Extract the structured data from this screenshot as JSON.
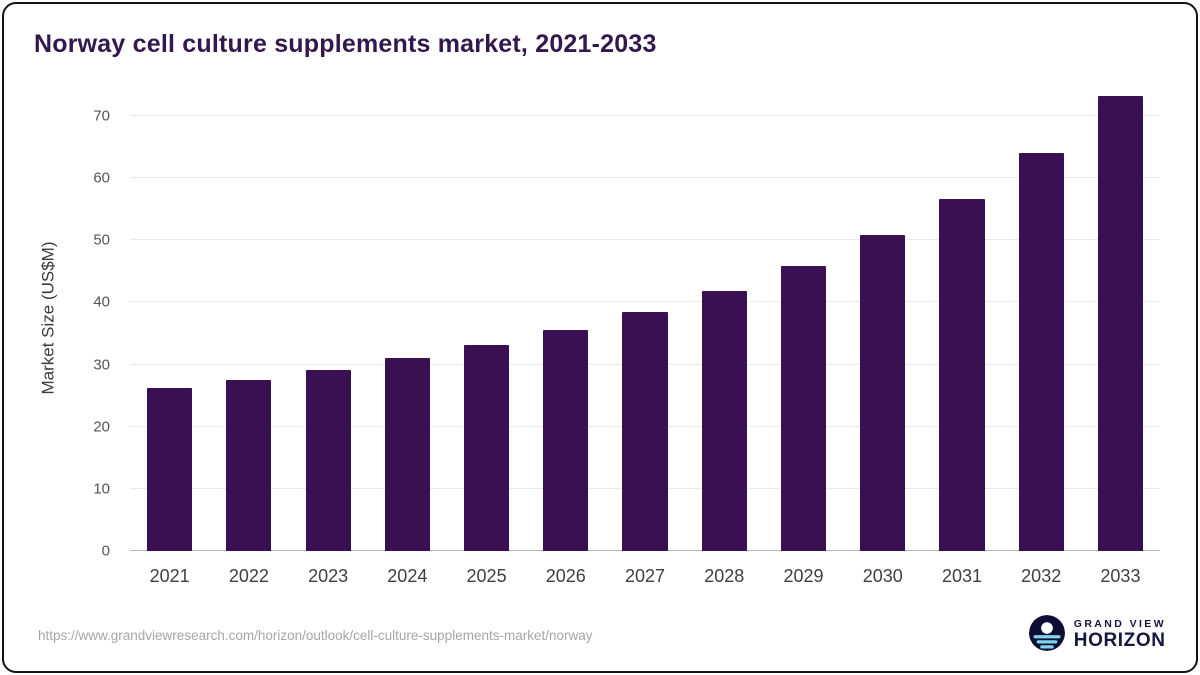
{
  "title": "Norway cell culture supplements market, 2021-2033",
  "chart_data": {
    "type": "bar",
    "categories": [
      "2021",
      "2022",
      "2023",
      "2024",
      "2025",
      "2026",
      "2027",
      "2028",
      "2029",
      "2030",
      "2031",
      "2032",
      "2033"
    ],
    "values": [
      26.2,
      27.5,
      29.1,
      31.1,
      33.1,
      35.5,
      38.5,
      41.8,
      45.9,
      50.8,
      56.6,
      64.0,
      73.2
    ],
    "title": "Norway cell culture supplements market, 2021-2033",
    "xlabel": "",
    "ylabel": "Market Size (US$M)",
    "ylim": [
      0,
      75
    ],
    "yticks": [
      0,
      10,
      20,
      30,
      40,
      50,
      60,
      70
    ],
    "grid": "horizontal",
    "legend": "none",
    "bar_color": "#3b1053",
    "grid_color": "#e9e9e9",
    "axis_color": "#b5b5b5"
  },
  "footer": {
    "source_url": "https://www.grandviewresearch.com/horizon/outlook/cell-culture-supplements-market/norway",
    "logo": {
      "line1": "GRAND VIEW",
      "line2": "HORIZON",
      "icon": "horizon-sun-icon",
      "color": "#16163f",
      "accent": "#7fd4f0"
    }
  }
}
